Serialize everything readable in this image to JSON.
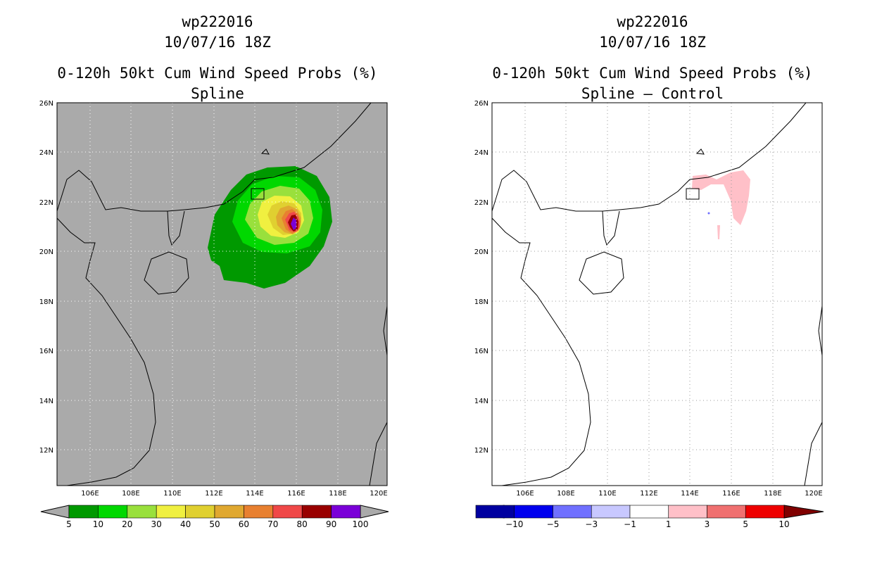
{
  "panels": [
    {
      "storm_id": "wp222016",
      "datetime": "10/07/16 18Z",
      "product": "0-120h 50kt Cum Wind Speed Probs (%)",
      "subtitle": "Spline",
      "colorbar": {
        "colors": [
          "#009900",
          "#00d800",
          "#99e03c",
          "#f0f040",
          "#e0d030",
          "#e0a830",
          "#e88030",
          "#f04848",
          "#990000",
          "#7a00d8"
        ],
        "labels": [
          "5",
          "10",
          "20",
          "30",
          "40",
          "50",
          "60",
          "70",
          "80",
          "90",
          "100"
        ]
      }
    },
    {
      "storm_id": "wp222016",
      "datetime": "10/07/16 18Z",
      "product": "0-120h 50kt Cum Wind Speed Probs (%)",
      "subtitle": "Spline – Control",
      "colorbar": {
        "colors": [
          "#0000a0",
          "#0000ee",
          "#7070ff",
          "#c8c8ff",
          "#ffffff",
          "#ffc0c8",
          "#f07070",
          "#ee0000"
        ],
        "end_colors": [
          "#000080",
          "#800000"
        ],
        "labels": [
          "−10",
          "−5",
          "−3",
          "−1",
          "1",
          "3",
          "5",
          "10"
        ]
      }
    }
  ],
  "map": {
    "lon_labels": [
      "106E",
      "108E",
      "110E",
      "112E",
      "114E",
      "116E",
      "118E",
      "120E"
    ],
    "lat_labels": [
      "12N",
      "14N",
      "16N",
      "18N",
      "20N",
      "22N",
      "24N",
      "26N"
    ],
    "land_color": "#aaaaaa"
  }
}
